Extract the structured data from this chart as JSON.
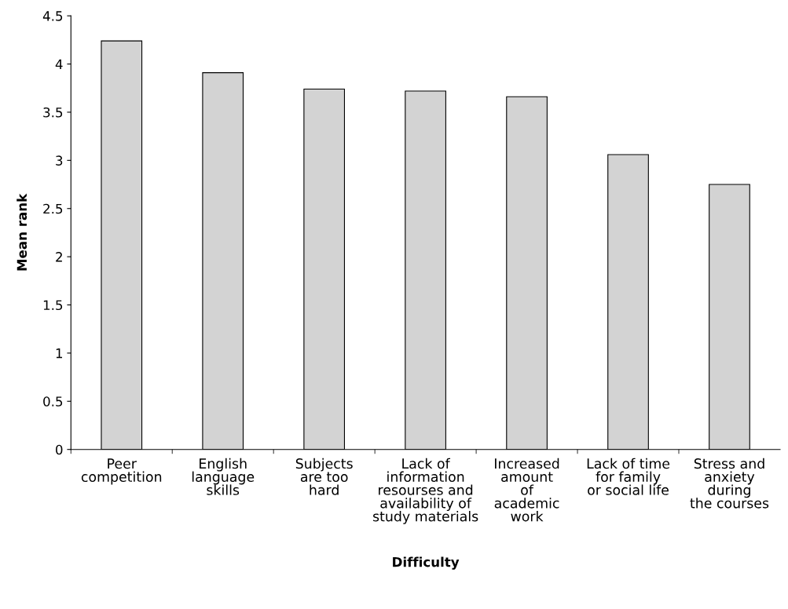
{
  "chart_data": {
    "type": "bar",
    "xlabel": "Difficulty",
    "ylabel": "Mean rank",
    "categories": [
      "Peer\ncompetition",
      "English\nlanguage\nskills",
      "Subjects\nare too\nhard",
      "Lack of\ninformation\nresourses and\navailability of\nstudy materials",
      "Increased\namount\nof\nacademic\nwork",
      "Lack of time\nfor family\nor social life",
      "Stress and\nanxiety\nduring\nthe courses"
    ],
    "values": [
      4.24,
      3.91,
      3.74,
      3.72,
      3.66,
      3.06,
      2.75
    ],
    "color": "#d3d3d3",
    "ylim": [
      0,
      4.5
    ],
    "yticks": [
      0,
      0.5,
      1,
      1.5,
      2,
      2.5,
      3,
      3.5,
      4,
      4.5
    ],
    "grid": false,
    "legend": false
  }
}
